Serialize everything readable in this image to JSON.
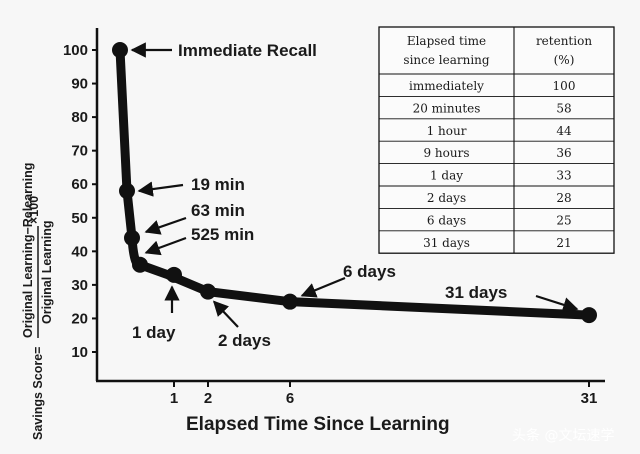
{
  "chart_data": {
    "type": "line",
    "ylabel_prefix": "Savings Score=",
    "ylabel_numerator": "Original Learning−Relearning",
    "ylabel_denominator": "Original Learning",
    "ylabel_suffix": "×100",
    "xlabel": "Elapsed Time Since Learning",
    "y_ticks": [
      10,
      20,
      30,
      40,
      50,
      60,
      70,
      80,
      90,
      100
    ],
    "x_ticks": [
      1,
      2,
      6,
      31
    ],
    "points": [
      {
        "label": "immediately",
        "x": 0,
        "y": 100
      },
      {
        "label": "20 minutes",
        "x": 0.014,
        "y": 58
      },
      {
        "label": "1 hour",
        "x": 0.042,
        "y": 44
      },
      {
        "label": "9 hours",
        "x": 0.375,
        "y": 36
      },
      {
        "label": "1 day",
        "x": 1,
        "y": 33
      },
      {
        "label": "2 days",
        "x": 2,
        "y": 28
      },
      {
        "label": "6 days",
        "x": 6,
        "y": 25
      },
      {
        "label": "31 days",
        "x": 31,
        "y": 21
      }
    ],
    "annotations": [
      "Immediate Recall",
      "19 min",
      "63 min",
      "525 min",
      "1 day",
      "2 days",
      "6 days",
      "31 days"
    ],
    "table": {
      "headers": [
        [
          "Elapsed time",
          "since learning"
        ],
        [
          "retention",
          "(%)"
        ]
      ],
      "rows": [
        [
          "immediately",
          "100"
        ],
        [
          "20 minutes",
          "58"
        ],
        [
          "1 hour",
          "44"
        ],
        [
          "9 hours",
          "36"
        ],
        [
          "1 day",
          "33"
        ],
        [
          "2 days",
          "28"
        ],
        [
          "6 days",
          "25"
        ],
        [
          "31 days",
          "21"
        ]
      ]
    },
    "grid": false,
    "line_color": "#111111"
  },
  "watermark": "头条 @文坛速学"
}
